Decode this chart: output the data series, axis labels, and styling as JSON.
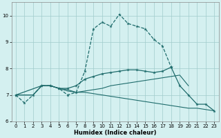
{
  "xlabel": "Humidex (Indice chaleur)",
  "bg_color": "#d4f0f0",
  "grid_color": "#a0cccc",
  "line_color": "#1e6b6b",
  "xlim": [
    -0.5,
    23.5
  ],
  "ylim": [
    6.0,
    10.5
  ],
  "yticks": [
    6,
    7,
    8,
    9,
    10
  ],
  "xticks": [
    0,
    1,
    2,
    3,
    4,
    5,
    6,
    7,
    8,
    9,
    10,
    11,
    12,
    13,
    14,
    15,
    16,
    17,
    18,
    19,
    20,
    21,
    22,
    23
  ],
  "line1_x": [
    0,
    1,
    2,
    3,
    4,
    5,
    6,
    7,
    8,
    9,
    10,
    11,
    12,
    13,
    14,
    15,
    16,
    17,
    18
  ],
  "line1_y": [
    7.0,
    6.7,
    7.0,
    7.35,
    7.35,
    7.25,
    7.0,
    7.1,
    7.9,
    9.5,
    9.75,
    9.6,
    10.05,
    9.7,
    9.6,
    9.5,
    9.1,
    8.85,
    8.05
  ],
  "line2_x": [
    0,
    3,
    4,
    5,
    6,
    7,
    8,
    9,
    10,
    11,
    12,
    13,
    14,
    15,
    16,
    17,
    18,
    19,
    20,
    21,
    22,
    23
  ],
  "line2_y": [
    7.0,
    7.35,
    7.35,
    7.25,
    7.25,
    7.35,
    7.6,
    7.7,
    7.8,
    7.85,
    7.9,
    7.95,
    7.95,
    7.9,
    7.85,
    7.9,
    8.05,
    7.35,
    7.0,
    6.65,
    6.65,
    6.4
  ],
  "line3_x": [
    0,
    2,
    3,
    4,
    5,
    6,
    7,
    8,
    9,
    10,
    11,
    12,
    13,
    14,
    15,
    16,
    17,
    18,
    19,
    20
  ],
  "line3_y": [
    7.0,
    7.0,
    7.35,
    7.35,
    7.25,
    7.2,
    7.1,
    7.15,
    7.2,
    7.25,
    7.35,
    7.4,
    7.45,
    7.5,
    7.55,
    7.6,
    7.65,
    7.7,
    7.75,
    7.35
  ],
  "line4_x": [
    0,
    2,
    3,
    4,
    5,
    6,
    7,
    8,
    9,
    10,
    11,
    12,
    13,
    14,
    15,
    16,
    17,
    18,
    19,
    20,
    21,
    22,
    23
  ],
  "line4_y": [
    7.0,
    7.0,
    7.35,
    7.35,
    7.25,
    7.15,
    7.1,
    7.1,
    7.05,
    7.0,
    6.95,
    6.9,
    6.85,
    6.8,
    6.75,
    6.7,
    6.65,
    6.6,
    6.55,
    6.5,
    6.5,
    6.45,
    6.4
  ]
}
